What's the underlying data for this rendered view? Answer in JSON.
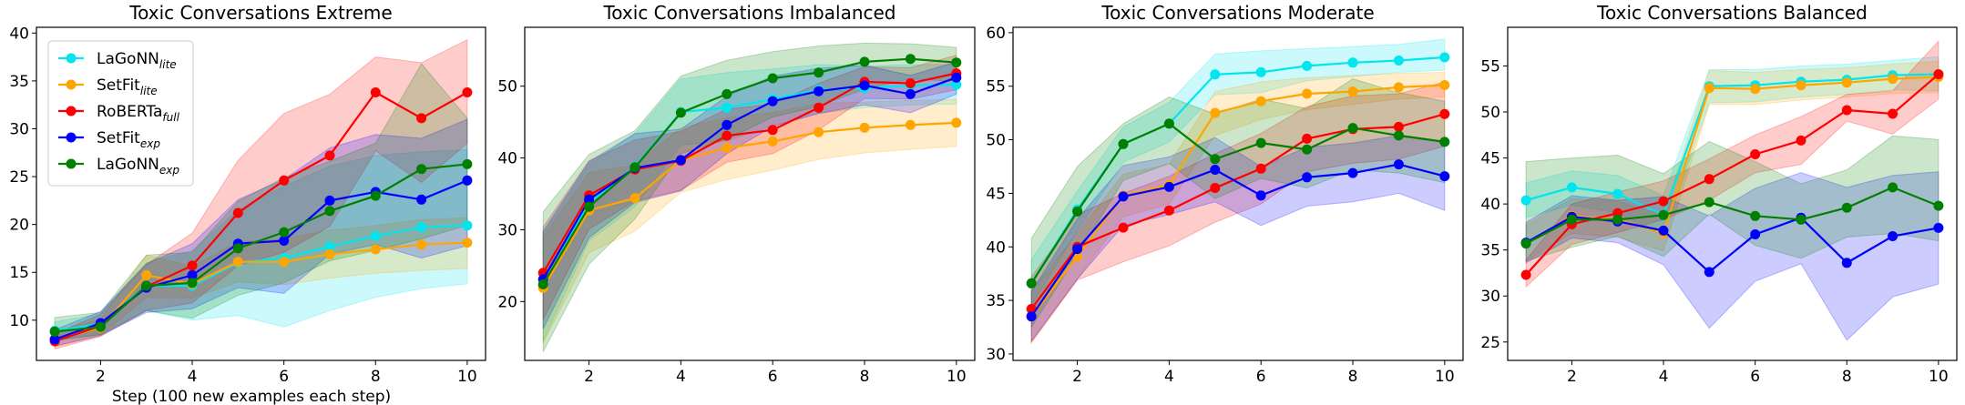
{
  "figure": {
    "xlabel_shared": "Step (100 new examples each step)"
  },
  "legend": [
    {
      "base": "LaGoNN",
      "sub": "lite",
      "color": "#00e5ee"
    },
    {
      "base": "SetFit",
      "sub": "lite",
      "color": "#ffa500"
    },
    {
      "base": "RoBERTa",
      "sub": "full",
      "color": "#ff0000"
    },
    {
      "base": "SetFit",
      "sub": "exp",
      "color": "#0000ff"
    },
    {
      "base": "LaGoNN",
      "sub": "exp",
      "color": "#008000"
    }
  ],
  "chart_data": [
    {
      "type": "line",
      "title": "Toxic Conversations Extreme",
      "x": [
        1,
        2,
        3,
        4,
        5,
        6,
        7,
        8,
        9,
        10
      ],
      "xticks": [
        2,
        4,
        6,
        8,
        10
      ],
      "xlim": [
        0.6,
        10.4
      ],
      "ylim": [
        5.8,
        40.6
      ],
      "yticks": [
        10,
        15,
        20,
        25,
        30,
        35,
        40
      ],
      "series": [
        {
          "name": "LaGoNN lite",
          "color": "#00e5ee",
          "values": [
            8.9,
            9.6,
            13.6,
            13.6,
            16.0,
            16.5,
            17.7,
            18.8,
            19.7,
            19.9
          ],
          "lower": [
            7.9,
            8.5,
            11.0,
            10.0,
            10.5,
            9.3,
            11.0,
            12.4,
            13.3,
            13.8
          ],
          "upper": [
            9.8,
            10.7,
            16.0,
            17.3,
            21.5,
            24.0,
            26.1,
            27.2,
            27.6,
            27.8
          ]
        },
        {
          "name": "SetFit lite",
          "color": "#ffa500",
          "values": [
            8.0,
            9.2,
            14.7,
            13.8,
            16.1,
            16.1,
            16.9,
            17.4,
            17.9,
            18.1
          ],
          "lower": [
            7.2,
            8.4,
            12.4,
            12.3,
            14.0,
            13.7,
            14.4,
            14.9,
            15.2,
            15.4
          ],
          "upper": [
            8.8,
            10.1,
            16.8,
            15.6,
            18.2,
            18.5,
            19.4,
            19.9,
            20.5,
            20.7
          ]
        },
        {
          "name": "RoBERTa full",
          "color": "#ff0000",
          "values": [
            7.8,
            9.4,
            13.5,
            15.7,
            21.2,
            24.6,
            27.2,
            33.8,
            31.1,
            33.8
          ],
          "lower": [
            7.0,
            8.3,
            11.0,
            11.8,
            15.7,
            17.1,
            19.8,
            27.7,
            24.4,
            28.5
          ],
          "upper": [
            8.6,
            10.6,
            15.8,
            19.1,
            26.7,
            31.6,
            33.6,
            37.5,
            36.9,
            39.3
          ]
        },
        {
          "name": "SetFit exp",
          "color": "#0000ff",
          "values": [
            8.0,
            9.7,
            13.4,
            14.7,
            18.0,
            18.3,
            22.5,
            23.4,
            22.6,
            24.6
          ],
          "lower": [
            7.3,
            8.4,
            10.8,
            11.2,
            13.4,
            12.8,
            16.9,
            17.9,
            16.5,
            17.8
          ],
          "upper": [
            9.0,
            10.9,
            15.9,
            18.0,
            22.6,
            24.7,
            28.0,
            29.4,
            29.0,
            31.0
          ]
        },
        {
          "name": "LaGoNN exp",
          "color": "#008000",
          "values": [
            8.8,
            9.3,
            13.6,
            13.9,
            17.5,
            19.2,
            21.4,
            23.0,
            25.8,
            26.3
          ],
          "lower": [
            7.9,
            8.5,
            11.0,
            10.2,
            12.6,
            13.9,
            16.2,
            17.3,
            18.5,
            19.9
          ],
          "upper": [
            10.3,
            10.8,
            16.8,
            17.1,
            22.4,
            24.9,
            26.6,
            28.5,
            36.8,
            31.1
          ]
        }
      ]
    },
    {
      "type": "line",
      "title": "Toxic Conversations Imbalanced",
      "x": [
        1,
        2,
        3,
        4,
        5,
        6,
        7,
        8,
        9,
        10
      ],
      "xticks": [
        2,
        4,
        6,
        8,
        10
      ],
      "xlim": [
        0.6,
        10.4
      ],
      "ylim": [
        11.8,
        58.2
      ],
      "yticks": [
        20,
        30,
        40,
        50
      ],
      "series": [
        {
          "name": "LaGoNN lite",
          "color": "#00e5ee",
          "values": [
            22.2,
            33.8,
            38.8,
            46.4,
            47.0,
            48.2,
            49.5,
            49.7,
            50.1,
            50.2
          ],
          "lower": [
            14.5,
            28.5,
            33.2,
            41.8,
            42.4,
            44.5,
            46.2,
            47.0,
            47.4,
            47.5
          ],
          "upper": [
            29.5,
            39.1,
            43.4,
            51.0,
            51.9,
            52.4,
            53.0,
            52.8,
            53.0,
            53.0
          ]
        },
        {
          "name": "SetFit lite",
          "color": "#ffa500",
          "values": [
            21.9,
            32.7,
            34.4,
            39.7,
            41.4,
            42.3,
            43.6,
            44.2,
            44.6,
            44.9
          ],
          "lower": [
            14.2,
            26.8,
            29.8,
            35.2,
            37.0,
            38.3,
            39.8,
            40.7,
            41.2,
            41.6
          ],
          "upper": [
            29.0,
            38.0,
            39.0,
            44.2,
            45.6,
            46.3,
            47.6,
            47.8,
            48.0,
            48.2
          ]
        },
        {
          "name": "RoBERTa full",
          "color": "#ff0000",
          "values": [
            24.0,
            34.8,
            38.4,
            39.6,
            43.1,
            43.9,
            47.0,
            50.6,
            50.4,
            51.8
          ],
          "lower": [
            17.5,
            30.1,
            34.0,
            35.5,
            39.4,
            40.6,
            43.9,
            48.3,
            48.2,
            49.5
          ],
          "upper": [
            30.4,
            39.6,
            42.5,
            43.7,
            46.8,
            47.5,
            50.4,
            52.7,
            52.6,
            54.3
          ]
        },
        {
          "name": "SetFit exp",
          "color": "#0000ff",
          "values": [
            23.1,
            34.2,
            38.6,
            39.7,
            44.6,
            47.9,
            49.3,
            50.1,
            48.9,
            51.2
          ],
          "lower": [
            16.2,
            28.9,
            33.8,
            35.4,
            40.6,
            44.4,
            46.2,
            47.4,
            46.3,
            48.9
          ],
          "upper": [
            29.8,
            39.5,
            43.4,
            44.0,
            48.6,
            51.4,
            52.5,
            52.9,
            51.5,
            53.4
          ]
        },
        {
          "name": "LaGoNN exp",
          "color": "#008000",
          "values": [
            22.4,
            33.2,
            38.7,
            46.3,
            48.9,
            51.1,
            51.9,
            53.4,
            53.8,
            53.3
          ],
          "lower": [
            13.0,
            25.2,
            31.5,
            40.6,
            42.6,
            45.7,
            47.2,
            49.6,
            51.0,
            50.7
          ],
          "upper": [
            32.5,
            40.5,
            43.8,
            51.4,
            53.6,
            54.8,
            55.6,
            56.0,
            55.9,
            55.4
          ]
        }
      ]
    },
    {
      "type": "line",
      "title": "Toxic Conversations Moderate",
      "x": [
        1,
        2,
        3,
        4,
        5,
        6,
        7,
        8,
        9,
        10
      ],
      "xticks": [
        2,
        4,
        6,
        8,
        10
      ],
      "xlim": [
        0.6,
        10.4
      ],
      "ylim": [
        29.4,
        60.5
      ],
      "yticks": [
        30,
        35,
        40,
        45,
        50,
        55,
        60
      ],
      "series": [
        {
          "name": "LaGoNN lite",
          "color": "#00e5ee",
          "values": [
            36.6,
            43.5,
            49.6,
            51.5,
            56.1,
            56.3,
            56.9,
            57.2,
            57.4,
            57.7
          ],
          "lower": [
            34.5,
            41.5,
            47.9,
            49.8,
            54.2,
            54.4,
            55.5,
            55.9,
            56.3,
            56.5
          ],
          "upper": [
            38.8,
            45.2,
            51.2,
            53.5,
            58.0,
            58.3,
            58.5,
            58.7,
            58.9,
            59.4
          ]
        },
        {
          "name": "SetFit lite",
          "color": "#ffa500",
          "values": [
            33.5,
            39.1,
            44.8,
            45.8,
            52.5,
            53.6,
            54.3,
            54.5,
            54.9,
            55.1
          ],
          "lower": [
            31.0,
            37.0,
            42.8,
            44.0,
            50.4,
            51.9,
            52.8,
            53.3,
            53.8,
            54.0
          ],
          "upper": [
            35.9,
            41.3,
            46.8,
            47.7,
            54.5,
            55.4,
            55.8,
            56.0,
            56.2,
            56.3
          ]
        },
        {
          "name": "RoBERTa full",
          "color": "#ff0000",
          "values": [
            34.2,
            40.0,
            41.8,
            43.4,
            45.5,
            47.3,
            50.1,
            51.0,
            51.2,
            52.4
          ],
          "lower": [
            31.1,
            36.9,
            38.6,
            40.1,
            42.3,
            44.0,
            47.0,
            47.8,
            48.2,
            49.4
          ],
          "upper": [
            37.2,
            43.0,
            45.0,
            46.6,
            48.7,
            50.6,
            53.1,
            54.1,
            54.3,
            55.4
          ]
        },
        {
          "name": "SetFit exp",
          "color": "#0000ff",
          "values": [
            33.5,
            39.8,
            44.7,
            45.6,
            47.2,
            44.8,
            46.5,
            46.9,
            47.7,
            46.6
          ],
          "lower": [
            31.2,
            37.0,
            42.0,
            43.0,
            44.2,
            42.0,
            43.8,
            44.2,
            45.0,
            43.4
          ],
          "upper": [
            35.8,
            42.6,
            47.6,
            48.4,
            50.2,
            47.5,
            49.3,
            49.7,
            50.4,
            49.8
          ]
        },
        {
          "name": "LaGoNN exp",
          "color": "#008000",
          "values": [
            36.6,
            43.3,
            49.6,
            51.5,
            48.2,
            49.7,
            49.1,
            51.1,
            50.4,
            49.8
          ],
          "lower": [
            32.5,
            39.2,
            46.2,
            47.8,
            44.5,
            46.4,
            45.5,
            47.2,
            46.9,
            46.0
          ],
          "upper": [
            40.8,
            47.5,
            51.5,
            54.0,
            52.4,
            53.8,
            52.9,
            55.7,
            54.4,
            53.6
          ]
        }
      ]
    },
    {
      "type": "line",
      "title": "Toxic Conversations Balanced",
      "x": [
        1,
        2,
        3,
        4,
        5,
        6,
        7,
        8,
        9,
        10
      ],
      "xticks": [
        2,
        4,
        6,
        8,
        10
      ],
      "xlim": [
        0.6,
        10.4
      ],
      "ylim": [
        23.0,
        59.2
      ],
      "yticks": [
        25,
        30,
        35,
        40,
        45,
        50,
        55
      ],
      "series": [
        {
          "name": "LaGoNN lite",
          "color": "#00e5ee",
          "values": [
            40.4,
            41.8,
            41.1,
            38.8,
            52.8,
            52.9,
            53.3,
            53.5,
            54.0,
            54.1
          ],
          "lower": [
            38.5,
            39.9,
            39.0,
            36.6,
            51.0,
            51.1,
            51.6,
            51.9,
            52.4,
            52.3
          ],
          "upper": [
            42.3,
            43.6,
            43.1,
            40.9,
            54.6,
            54.6,
            55.0,
            55.2,
            55.6,
            56.0
          ]
        },
        {
          "name": "SetFit lite",
          "color": "#ffa500",
          "values": [
            35.7,
            38.7,
            38.3,
            36.8,
            52.6,
            52.5,
            52.9,
            53.2,
            53.6,
            53.8
          ],
          "lower": [
            33.8,
            36.8,
            36.4,
            34.9,
            50.8,
            50.8,
            51.3,
            51.6,
            52.0,
            52.1
          ],
          "upper": [
            37.7,
            40.6,
            40.3,
            38.8,
            54.5,
            54.3,
            54.6,
            54.8,
            55.2,
            55.5
          ]
        },
        {
          "name": "RoBERTa full",
          "color": "#ff0000",
          "values": [
            32.3,
            37.8,
            39.0,
            40.3,
            42.7,
            45.4,
            46.9,
            50.2,
            49.8,
            54.1
          ],
          "lower": [
            31.0,
            35.6,
            36.9,
            38.3,
            40.4,
            43.4,
            44.3,
            49.0,
            47.6,
            51.4
          ],
          "upper": [
            33.9,
            40.0,
            41.3,
            42.5,
            44.9,
            47.5,
            49.5,
            51.9,
            52.3,
            57.7
          ]
        },
        {
          "name": "SetFit exp",
          "color": "#0000ff",
          "values": [
            35.8,
            38.6,
            38.1,
            37.1,
            32.6,
            36.7,
            38.5,
            33.6,
            36.5,
            37.4
          ],
          "lower": [
            33.6,
            36.3,
            35.8,
            33.4,
            26.5,
            31.6,
            33.5,
            25.2,
            29.9,
            31.3
          ],
          "upper": [
            38.0,
            40.9,
            40.4,
            40.8,
            38.7,
            41.7,
            43.4,
            41.8,
            43.1,
            43.5
          ]
        },
        {
          "name": "LaGoNN exp",
          "color": "#008000",
          "values": [
            35.7,
            38.3,
            38.3,
            38.8,
            40.2,
            38.7,
            38.3,
            39.6,
            41.8,
            39.8
          ],
          "lower": [
            33.8,
            35.3,
            36.5,
            34.3,
            38.9,
            35.5,
            34.1,
            36.4,
            36.8,
            36.0
          ],
          "upper": [
            44.6,
            45.0,
            45.3,
            43.3,
            46.8,
            44.6,
            42.2,
            43.7,
            47.4,
            47.0
          ]
        }
      ]
    }
  ]
}
